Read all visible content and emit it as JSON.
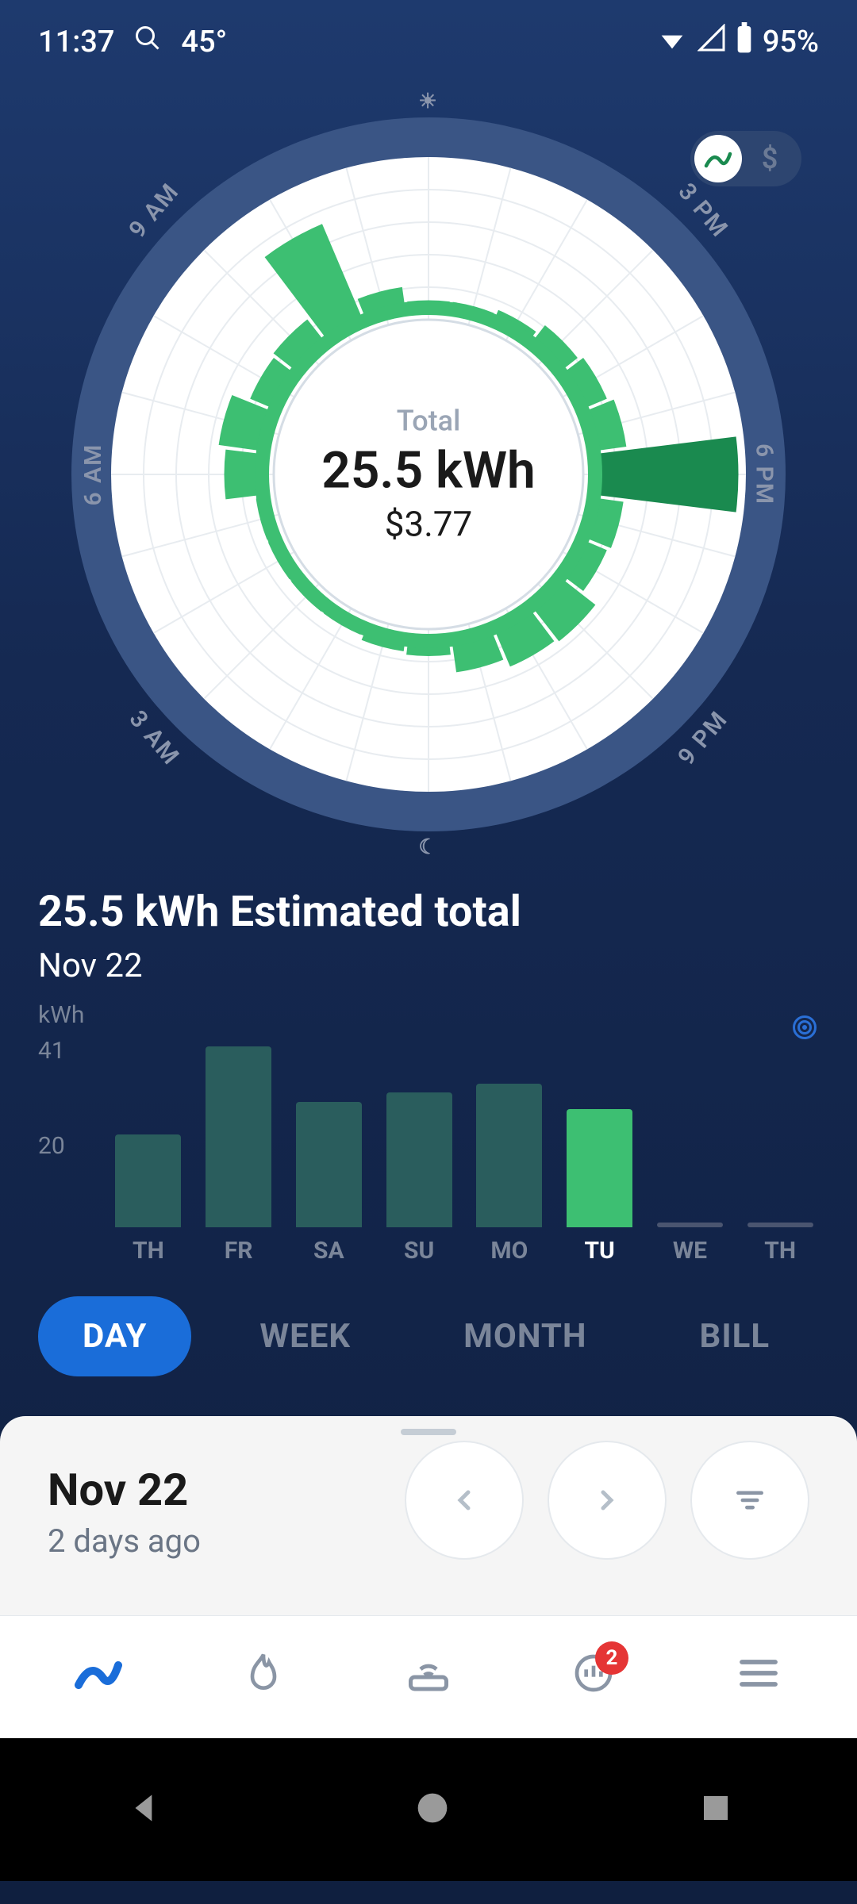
{
  "status_bar": {
    "time": "11:37",
    "temperature": "45°",
    "battery": "95%"
  },
  "toggle": {
    "dollar_label": "$"
  },
  "radial_chart": {
    "total_label": "Total",
    "total_value": "25.5 kWh",
    "cost": "$3.77",
    "labels": {
      "top": "☀",
      "bottom": "☾",
      "tr": "3 PM",
      "r": "6 PM",
      "br": "9 PM",
      "bl": "3 AM",
      "l": "6 AM",
      "tl": "9 AM"
    },
    "outer_ring_color": "#3a5585",
    "inner_bg_color": "#ffffff",
    "grid_color": "#e8ecf0",
    "center_ring_color": "#3dbf72",
    "segments": [
      {
        "angle": 0,
        "value": 0.05
      },
      {
        "angle": 15,
        "value": 0.05
      },
      {
        "angle": 30,
        "value": 0.08
      },
      {
        "angle": 45,
        "value": 0.15
      },
      {
        "angle": 60,
        "value": 0.18
      },
      {
        "angle": 75,
        "value": 0.22
      },
      {
        "angle": 90,
        "value": 0.95,
        "color": "#1a8a4f"
      },
      {
        "angle": 105,
        "value": 0.2
      },
      {
        "angle": 120,
        "value": 0.18
      },
      {
        "angle": 135,
        "value": 0.3
      },
      {
        "angle": 150,
        "value": 0.28
      },
      {
        "angle": 165,
        "value": 0.22
      },
      {
        "angle": 180,
        "value": 0.1
      },
      {
        "angle": 195,
        "value": 0.08
      },
      {
        "angle": 210,
        "value": 0.05
      },
      {
        "angle": 225,
        "value": 0.05
      },
      {
        "angle": 240,
        "value": 0.05
      },
      {
        "angle": 255,
        "value": 0.05
      },
      {
        "angle": 270,
        "value": 0.25
      },
      {
        "angle": 285,
        "value": 0.3
      },
      {
        "angle": 300,
        "value": 0.18
      },
      {
        "angle": 315,
        "value": 0.2
      },
      {
        "angle": 330,
        "value": 0.7
      },
      {
        "angle": 345,
        "value": 0.15
      }
    ],
    "segment_color": "#3dbf72"
  },
  "summary": {
    "title": "25.5 kWh Estimated total",
    "date": "Nov 22"
  },
  "bar_chart": {
    "ylabel": "kWh",
    "ymax": 41,
    "yticks": [
      "41",
      "20"
    ],
    "bar_color_default": "#2a5d5d",
    "bar_color_highlight": "#3dbf72",
    "label_color_default": "#7a8599",
    "label_color_highlight": "#ffffff",
    "bars": [
      {
        "label": "TH",
        "value": 20,
        "highlight": false
      },
      {
        "label": "FR",
        "value": 39,
        "highlight": false
      },
      {
        "label": "SA",
        "value": 27,
        "highlight": false
      },
      {
        "label": "SU",
        "value": 29,
        "highlight": false
      },
      {
        "label": "MO",
        "value": 31,
        "highlight": false
      },
      {
        "label": "TU",
        "value": 25.5,
        "highlight": true
      },
      {
        "label": "WE",
        "value": 0,
        "highlight": false
      },
      {
        "label": "TH",
        "value": 0,
        "highlight": false
      }
    ]
  },
  "range_tabs": {
    "items": [
      "DAY",
      "WEEK",
      "MONTH",
      "BILL"
    ],
    "active_index": 0,
    "active_bg": "#1a6dd9"
  },
  "date_card": {
    "title": "Nov 22",
    "subtitle": "2 days ago"
  },
  "bottom_nav": {
    "badge_count": "2"
  }
}
